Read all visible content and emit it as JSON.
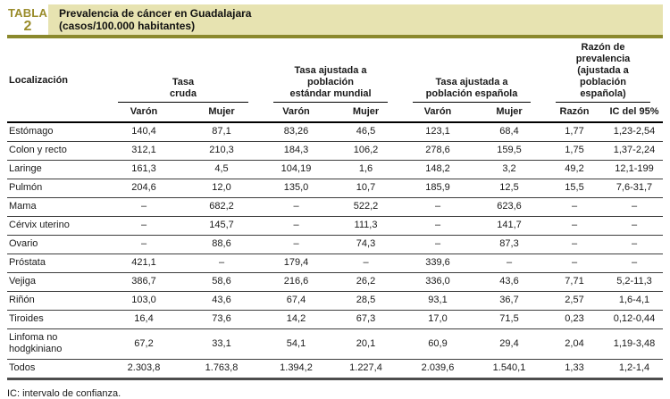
{
  "badge": {
    "word": "TABLA",
    "number": "2"
  },
  "title": {
    "line1": "Prevalencia de cáncer en Guadalajara",
    "line2": "(casos/100.000 habitantes)"
  },
  "colors": {
    "band_background": "#e7e3b1",
    "badge_text": "#9a8c2b",
    "olive_rule": "#8b892d",
    "row_line": "#3d3d3d",
    "bottom_rule": "#4d4d4d"
  },
  "table": {
    "corner_header": "Localización",
    "groups": [
      {
        "line1": "Tasa",
        "line2": "cruda"
      },
      {
        "line1": "Tasa ajustada a población",
        "line2": "estándar mundial"
      },
      {
        "line1": "Tasa ajustada a",
        "line2": "población española"
      },
      {
        "line1": "Razón de prevalencia",
        "line2": "(ajustada a población española)"
      }
    ],
    "subheaders": [
      "Varón",
      "Mujer",
      "Varón",
      "Mujer",
      "Varón",
      "Mujer",
      "Razón",
      "IC del 95%"
    ],
    "rows": [
      {
        "label": "Estómago",
        "values": [
          "140,4",
          "87,1",
          "83,26",
          "46,5",
          "123,1",
          "68,4",
          "1,77",
          "1,23-2,54"
        ]
      },
      {
        "label": "Colon y recto",
        "values": [
          "312,1",
          "210,3",
          "184,3",
          "106,2",
          "278,6",
          "159,5",
          "1,75",
          "1,37-2,24"
        ]
      },
      {
        "label": "Laringe",
        "values": [
          "161,3",
          "4,5",
          "104,19",
          "1,6",
          "148,2",
          "3,2",
          "49,2",
          "12,1-199"
        ]
      },
      {
        "label": "Pulmón",
        "values": [
          "204,6",
          "12,0",
          "135,0",
          "10,7",
          "185,9",
          "12,5",
          "15,5",
          "7,6-31,7"
        ]
      },
      {
        "label": "Mama",
        "values": [
          "–",
          "682,2",
          "–",
          "522,2",
          "–",
          "623,6",
          "–",
          "–"
        ]
      },
      {
        "label": "Cérvix uterino",
        "values": [
          "–",
          "145,7",
          "–",
          "111,3",
          "–",
          "141,7",
          "–",
          "–"
        ]
      },
      {
        "label": "Ovario",
        "values": [
          "–",
          "88,6",
          "–",
          "74,3",
          "–",
          "87,3",
          "–",
          "–"
        ]
      },
      {
        "label": "Próstata",
        "values": [
          "421,1",
          "–",
          "179,4",
          "–",
          "339,6",
          "–",
          "–",
          "–"
        ]
      },
      {
        "label": "Vejiga",
        "values": [
          "386,7",
          "58,6",
          "216,6",
          "26,2",
          "336,0",
          "43,6",
          "7,71",
          "5,2-11,3"
        ]
      },
      {
        "label": "Riñón",
        "values": [
          "103,0",
          "43,6",
          "67,4",
          "28,5",
          "93,1",
          "36,7",
          "2,57",
          "1,6-4,1"
        ]
      },
      {
        "label": "Tiroides",
        "values": [
          "16,4",
          "73,6",
          "14,2",
          "67,3",
          "17,0",
          "71,5",
          "0,23",
          "0,12-0,44"
        ]
      },
      {
        "label": "Linfoma no hodgkiniano",
        "values": [
          "67,2",
          "33,1",
          "54,1",
          "20,1",
          "60,9",
          "29,4",
          "2,04",
          "1,19-3,48"
        ]
      },
      {
        "label": "Todos",
        "values": [
          "2.303,8",
          "1.763,8",
          "1.394,2",
          "1.227,4",
          "2.039,6",
          "1.540,1",
          "1,33",
          "1,2-1,4"
        ]
      }
    ]
  },
  "footnote": "IC: intervalo de confianza."
}
